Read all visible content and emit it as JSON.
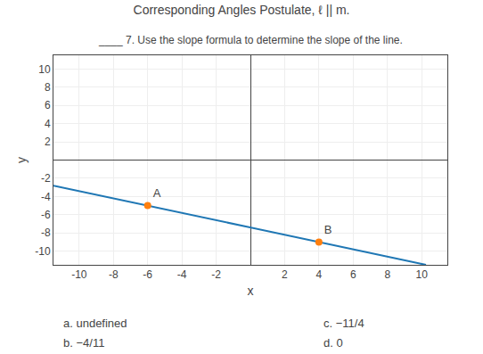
{
  "chart_data": {
    "type": "scatter",
    "title": "Corresponding Angles Postulate, ℓ || m.",
    "subtitle": "____ 7. Use the slope formula to determine the slope of the line.",
    "x_label": "x",
    "y_label": "y",
    "series": [
      {
        "type": "line",
        "x": [
          -11.5,
          10.25
        ],
        "values": [
          -2.8,
          -11.5
        ]
      },
      {
        "type": "scatter",
        "marker": "circle",
        "x": [
          -6,
          4
        ],
        "values": [
          -5,
          -9
        ],
        "labels": [
          "A",
          "B"
        ]
      }
    ],
    "xlim": [
      -11.5,
      11.5
    ],
    "ylim": [
      -11.5,
      11.5
    ],
    "xticks": [
      -10,
      -8,
      -6,
      -4,
      -2,
      2,
      4,
      6,
      8,
      10
    ],
    "yticks": [
      -10,
      -8,
      -6,
      -4,
      -2,
      2,
      4,
      6,
      8,
      10
    ],
    "grid": true,
    "annotations": [
      "a. undefined",
      "b. −4/11",
      "c. −11/4",
      "d. 0"
    ]
  }
}
